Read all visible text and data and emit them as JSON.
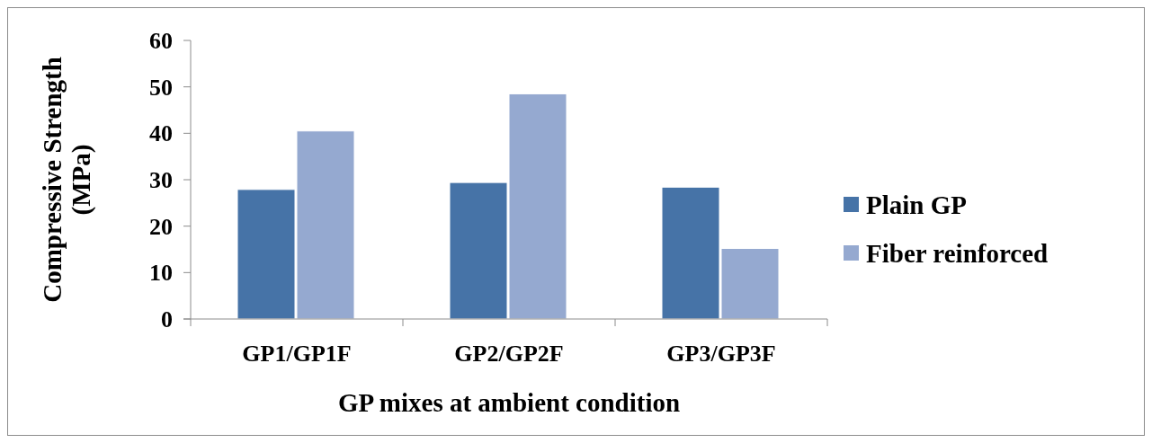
{
  "chart_data": {
    "type": "bar",
    "xlabel": "GP mixes at ambient condition",
    "ylabel": "Compressive Strength (MPa)",
    "categories": [
      "GP1/GP1F",
      "GP2/GP2F",
      "GP3/GP3F"
    ],
    "series": [
      {
        "name": "Plain GP",
        "color": "#4673a7",
        "values": [
          27.9,
          29.4,
          28.4
        ]
      },
      {
        "name": "Fiber reinforced",
        "color": "#95a9d0",
        "values": [
          40.5,
          48.5,
          15.2
        ]
      }
    ],
    "ylim": [
      0,
      60
    ],
    "yticks": [
      0,
      10,
      20,
      30,
      40,
      50,
      60
    ],
    "grid": false,
    "legend": "right"
  }
}
